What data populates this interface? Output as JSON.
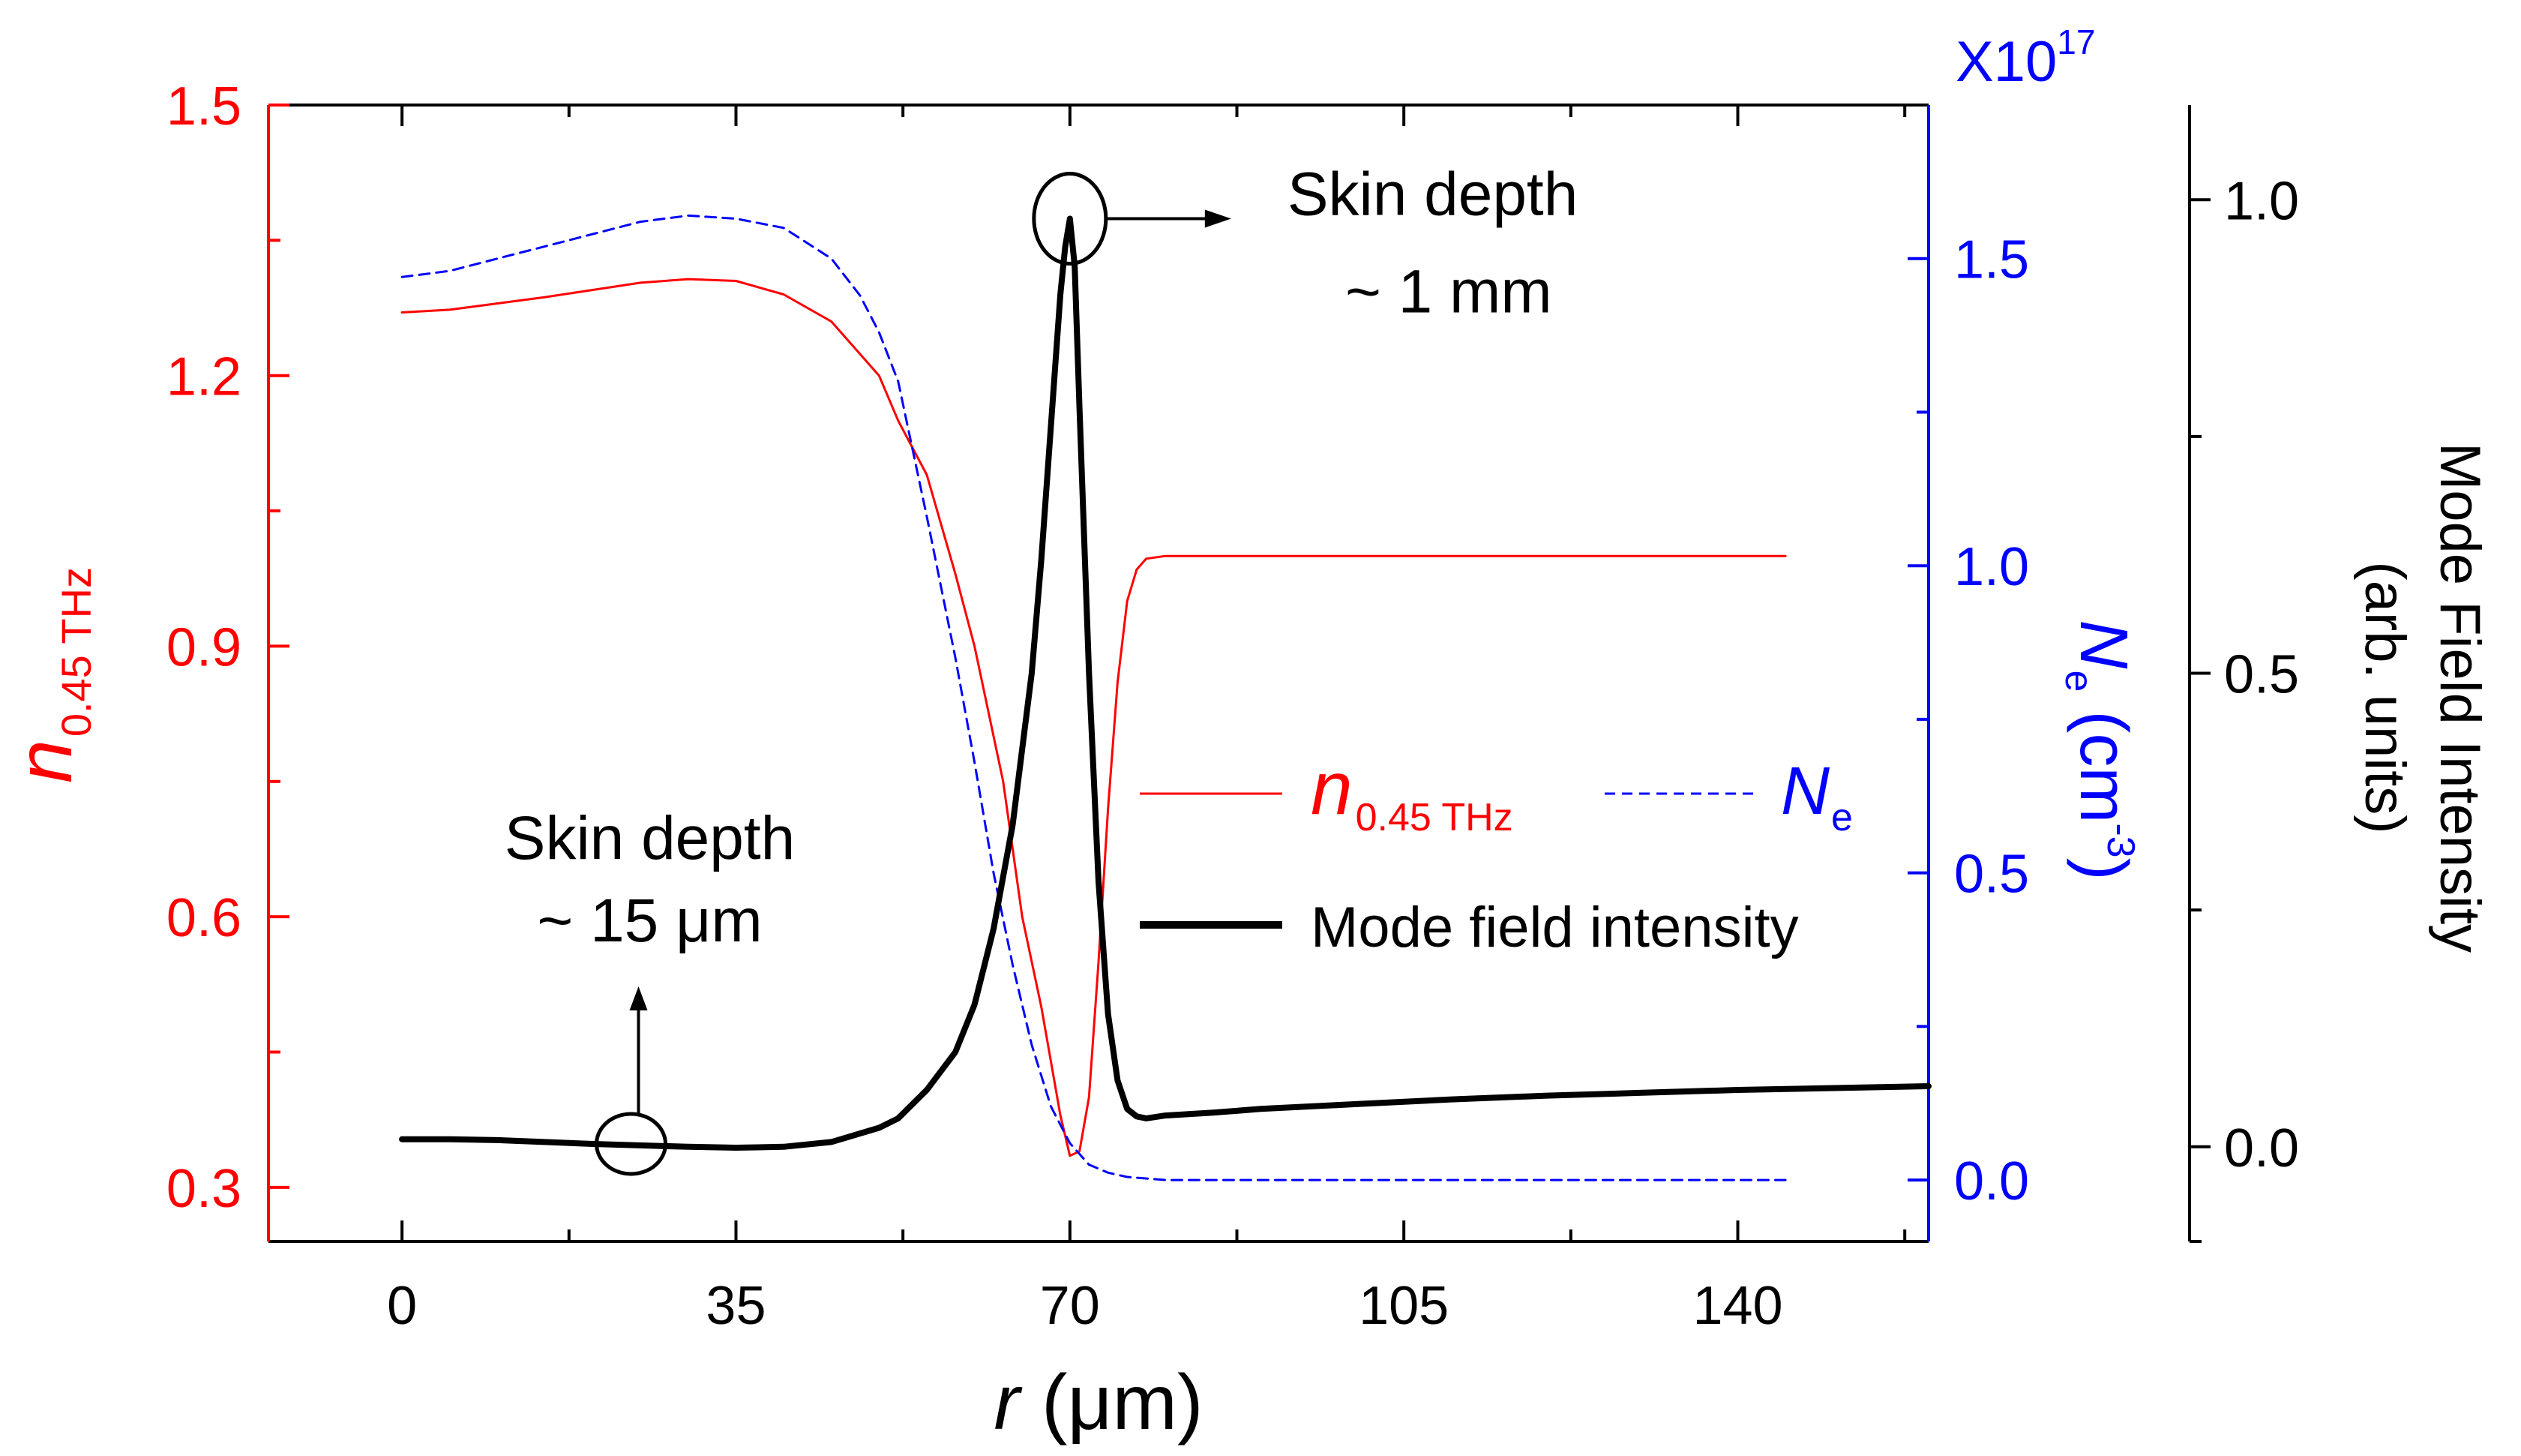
{
  "chart_data": {
    "type": "line",
    "title": "",
    "xlabel": {
      "var": "r",
      "unit": "(μm)"
    },
    "xlim": [
      -14,
      160
    ],
    "xticks": [
      0,
      35,
      70,
      105,
      140
    ],
    "x_minor_step": 17.5,
    "y_left": {
      "label_main": "n",
      "label_sub": "0.45 THz",
      "color": "#ff0000",
      "lim": [
        0.24,
        1.5
      ],
      "ticks": [
        "0.3",
        "0.6",
        "0.9",
        "1.2",
        "1.5"
      ],
      "tick_values": [
        0.3,
        0.6,
        0.9,
        1.2,
        1.5
      ],
      "minor_step": 0.15
    },
    "y_right_blue": {
      "label_main": "N",
      "label_sub": "e",
      "label_unit_open": "(cm",
      "label_unit_sup": "-3",
      "label_unit_close": ")",
      "color": "#0000ff",
      "multiplier_base": "X10",
      "multiplier_exp": "17",
      "lim": [
        -0.1,
        1.75
      ],
      "ticks": [
        "0.0",
        "0.5",
        "1.0",
        "1.5"
      ],
      "tick_values": [
        0,
        0.5,
        1.0,
        1.5
      ],
      "minor_step": 0.25
    },
    "y_right_black": {
      "label_line1": "Mode Field Intensity",
      "label_line2": "(arb. units)",
      "color": "#000000",
      "lim": [
        -0.1,
        1.1
      ],
      "ticks": [
        "0.0",
        "0.5",
        "1.0"
      ],
      "tick_values": [
        0,
        0.5,
        1.0
      ],
      "minor_step": 0.25
    },
    "series": [
      {
        "name": "n_0.45THz",
        "axis": "left",
        "color": "#ff0000",
        "style": "solid",
        "x": [
          0,
          5,
          10,
          15,
          20,
          25,
          30,
          35,
          40,
          45,
          50,
          52,
          55,
          58,
          60,
          63,
          65,
          67,
          68,
          69,
          70,
          71,
          72,
          73,
          74,
          75,
          76,
          77,
          78,
          80,
          85,
          100,
          120,
          145
        ],
        "y": [
          1.27,
          1.273,
          1.28,
          1.287,
          1.295,
          1.303,
          1.307,
          1.305,
          1.29,
          1.26,
          1.2,
          1.15,
          1.09,
          0.98,
          0.9,
          0.75,
          0.6,
          0.5,
          0.44,
          0.38,
          0.335,
          0.34,
          0.4,
          0.55,
          0.72,
          0.86,
          0.95,
          0.985,
          0.997,
          1.0,
          1.0,
          1.0,
          1.0,
          1.0
        ]
      },
      {
        "name": "N_e",
        "axis": "right_blue",
        "color": "#0000ff",
        "style": "dashed",
        "x": [
          0,
          5,
          10,
          15,
          20,
          25,
          30,
          35,
          40,
          45,
          48,
          50,
          52,
          55,
          58,
          60,
          62,
          64,
          66,
          68,
          70,
          72,
          74,
          76,
          80,
          90,
          110,
          145
        ],
        "y": [
          1.47,
          1.48,
          1.5,
          1.52,
          1.54,
          1.56,
          1.57,
          1.565,
          1.55,
          1.5,
          1.44,
          1.38,
          1.3,
          1.08,
          0.85,
          0.68,
          0.5,
          0.35,
          0.22,
          0.12,
          0.06,
          0.025,
          0.012,
          0.005,
          0.0,
          0.0,
          0.0,
          0.0
        ]
      },
      {
        "name": "Mode field intensity",
        "axis": "right_black",
        "color": "#000000",
        "style": "solid",
        "x": [
          0,
          5,
          10,
          20,
          30,
          35,
          40,
          45,
          50,
          52,
          55,
          58,
          60,
          62,
          64,
          66,
          67,
          68,
          69,
          69.5,
          70,
          70.5,
          71,
          72,
          73,
          74,
          75,
          76,
          77,
          78,
          80,
          85,
          90,
          100,
          110,
          120,
          130,
          140,
          150,
          155,
          160
        ],
        "y": [
          0.008,
          0.008,
          0.007,
          0.003,
          0.0,
          -0.001,
          0.0,
          0.005,
          0.02,
          0.03,
          0.06,
          0.1,
          0.15,
          0.23,
          0.34,
          0.5,
          0.62,
          0.76,
          0.9,
          0.95,
          0.98,
          0.93,
          0.78,
          0.5,
          0.28,
          0.14,
          0.07,
          0.04,
          0.032,
          0.03,
          0.033,
          0.036,
          0.04,
          0.045,
          0.05,
          0.054,
          0.057,
          0.06,
          0.062,
          0.063,
          0.064
        ]
      }
    ],
    "legend": {
      "location": "center-right",
      "entries": [
        {
          "label_main": "n",
          "label_sub": "0.45 THz",
          "color": "#ff0000",
          "style": "solid"
        },
        {
          "label_main": "N",
          "label_sub": "e",
          "color": "#0000ff",
          "style": "dashed"
        },
        {
          "label": "Mode field intensity",
          "color": "#000000",
          "style": "solid-thick"
        }
      ]
    },
    "annotations": [
      {
        "line1": "Skin depth",
        "line2": "~ 1 mm",
        "target_x": 70,
        "target_y": 0.98,
        "target_axis": "right_black",
        "arrow": "right"
      },
      {
        "line1": "Skin depth",
        "line2": "~ 15 μm",
        "target_x": 24,
        "target_y": 0.003,
        "target_axis": "right_black",
        "arrow": "up"
      }
    ]
  }
}
